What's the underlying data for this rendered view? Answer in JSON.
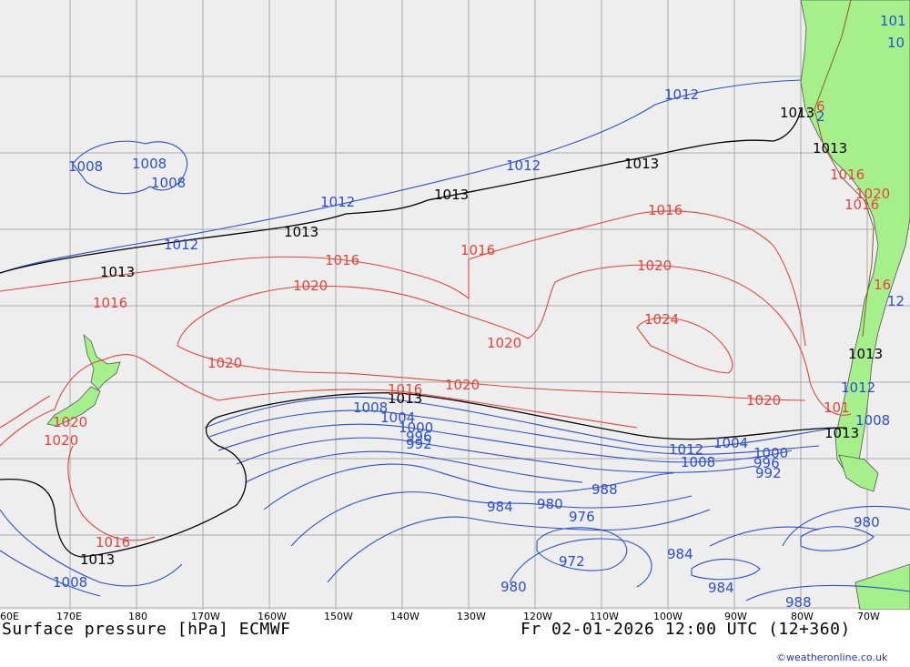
{
  "footer": {
    "title": "Surface pressure [hPa] ECMWF",
    "valid": "Fr 02-01-2026 12:00 UTC (12+360)",
    "credit": "©weatheronline.co.uk"
  },
  "lon_labels": [
    "60E",
    "170E",
    "180",
    "170W",
    "160W",
    "150W",
    "140W",
    "130W",
    "120W",
    "110W",
    "100W",
    "90W",
    "80W",
    "70W"
  ],
  "colors": {
    "ocean": "#eeeeee",
    "land": "#a6f08c",
    "grid": "#aaaaaa",
    "low_isobar": "#2a4fd6",
    "high_isobar": "#e8443a",
    "standard_isobar": "#000000"
  },
  "isobar_labels": {
    "p1008": "1008",
    "p1012": "1012",
    "p1013": "1013",
    "p1016": "1016",
    "p1020": "1020",
    "p1024": "1024",
    "p1004": "1004",
    "p1000": "1000",
    "p996": "996",
    "p992": "992",
    "p988": "988",
    "p984": "984",
    "p980": "980",
    "p976": "976",
    "p972": "972",
    "p101": "101",
    "p10": "10",
    "p6": "6",
    "p2": "2",
    "p16": "16",
    "p12": "12"
  }
}
